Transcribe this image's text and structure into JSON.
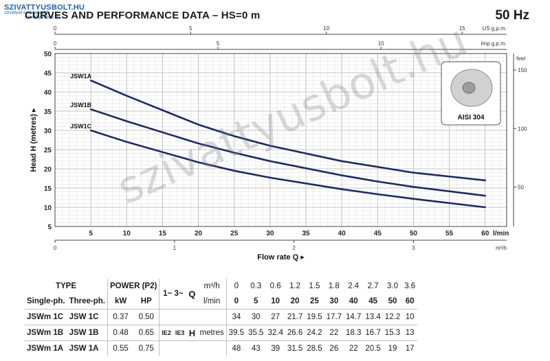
{
  "logo": {
    "line1": "SZIVATTYUSBOLT.HU",
    "line2": "szivattyúk és kiegészítők",
    "line3": "szivattyusbolt.hu"
  },
  "header": {
    "title": "CURVES AND PERFORMANCE DATA  –  HS=0 m",
    "frequency": "50 Hz"
  },
  "watermark": "szivattyusbolt.hu",
  "image_label": "AISI 304",
  "chart_data": {
    "type": "line",
    "ylabel": "Head H (metres) ▸",
    "xlabel": "Flow rate Q ▸",
    "xlim": [
      0,
      63
    ],
    "ylim": [
      5,
      50
    ],
    "x_ticks": [
      5,
      10,
      15,
      20,
      25,
      30,
      35,
      40,
      45,
      50,
      55,
      60
    ],
    "x_unit": "l/min",
    "y_ticks": [
      5,
      10,
      15,
      20,
      25,
      30,
      35,
      40,
      45,
      50
    ],
    "grid": true,
    "top_axes": [
      {
        "unit": "US g.p.m.",
        "ticks": [
          "0",
          "5",
          "10",
          "15"
        ],
        "values_lmin": [
          0,
          18.927,
          37.854,
          56.781
        ]
      },
      {
        "unit": "Imp g.p.m.",
        "ticks": [
          "0",
          "5",
          "10"
        ],
        "values_lmin": [
          0,
          22.73,
          45.46
        ]
      }
    ],
    "bottom_axis": {
      "unit": "m³/h",
      "ticks": [
        "0",
        "1",
        "2",
        "3"
      ],
      "values_lmin": [
        0,
        16.667,
        33.333,
        50
      ]
    },
    "right_axis": {
      "unit": "feet",
      "ticks": [
        "50",
        "100",
        "150"
      ],
      "values_m": [
        15.24,
        30.48,
        45.72
      ]
    },
    "series": [
      {
        "name": "JSW1A",
        "x": [
          5,
          10,
          20,
          25,
          30,
          40,
          45,
          50,
          60
        ],
        "y": [
          43,
          39,
          31.5,
          28.5,
          26,
          22,
          20.5,
          19,
          17
        ]
      },
      {
        "name": "JSW1B",
        "x": [
          5,
          10,
          20,
          25,
          30,
          40,
          45,
          50,
          60
        ],
        "y": [
          35.5,
          32.4,
          26.6,
          24.2,
          22,
          18.3,
          16.7,
          15.3,
          13
        ]
      },
      {
        "name": "JSW1C",
        "x": [
          5,
          10,
          20,
          25,
          30,
          40,
          45,
          50,
          60
        ],
        "y": [
          30,
          27,
          21.7,
          19.5,
          17.7,
          14.7,
          13.4,
          12.2,
          10
        ]
      }
    ]
  },
  "table": {
    "h_type": "TYPE",
    "h_power": "POWER (P2)",
    "h_phase": "1~ 3~",
    "h_q": "Q",
    "h_m3h": "m³/h",
    "h_lmin": "l/min",
    "h_single": "Single-ph.",
    "h_three": "Three-ph.",
    "h_kw": "kW",
    "h_hp": "HP",
    "q_m3h": [
      "0",
      "0.3",
      "0.6",
      "1.2",
      "1.5",
      "1.8",
      "2.4",
      "2.7",
      "3.0",
      "3.6"
    ],
    "q_lmin": [
      "0",
      "5",
      "10",
      "20",
      "25",
      "30",
      "40",
      "45",
      "50",
      "60"
    ],
    "ie2": "IE2",
    "ie3": "IE3",
    "h_label": "H",
    "h_metres": "metres",
    "rows": [
      {
        "single": "JSWm 1C",
        "three": "JSW 1C",
        "kw": "0.37",
        "hp": "0.50",
        "h": [
          "34",
          "30",
          "27",
          "21.7",
          "19.5",
          "17.7",
          "14.7",
          "13.4",
          "12.2",
          "10"
        ]
      },
      {
        "single": "JSWm 1B",
        "three": "JSW 1B",
        "kw": "0.48",
        "hp": "0.65",
        "h": [
          "39.5",
          "35.5",
          "32.4",
          "26.6",
          "24.2",
          "22",
          "18.3",
          "16.7",
          "15.3",
          "13"
        ]
      },
      {
        "single": "JSWm 1A",
        "three": "JSW 1A",
        "kw": "0.55",
        "hp": "0.75",
        "h": [
          "48",
          "43",
          "39",
          "31.5",
          "28.5",
          "26",
          "22",
          "20.5",
          "19",
          "17"
        ]
      }
    ]
  }
}
